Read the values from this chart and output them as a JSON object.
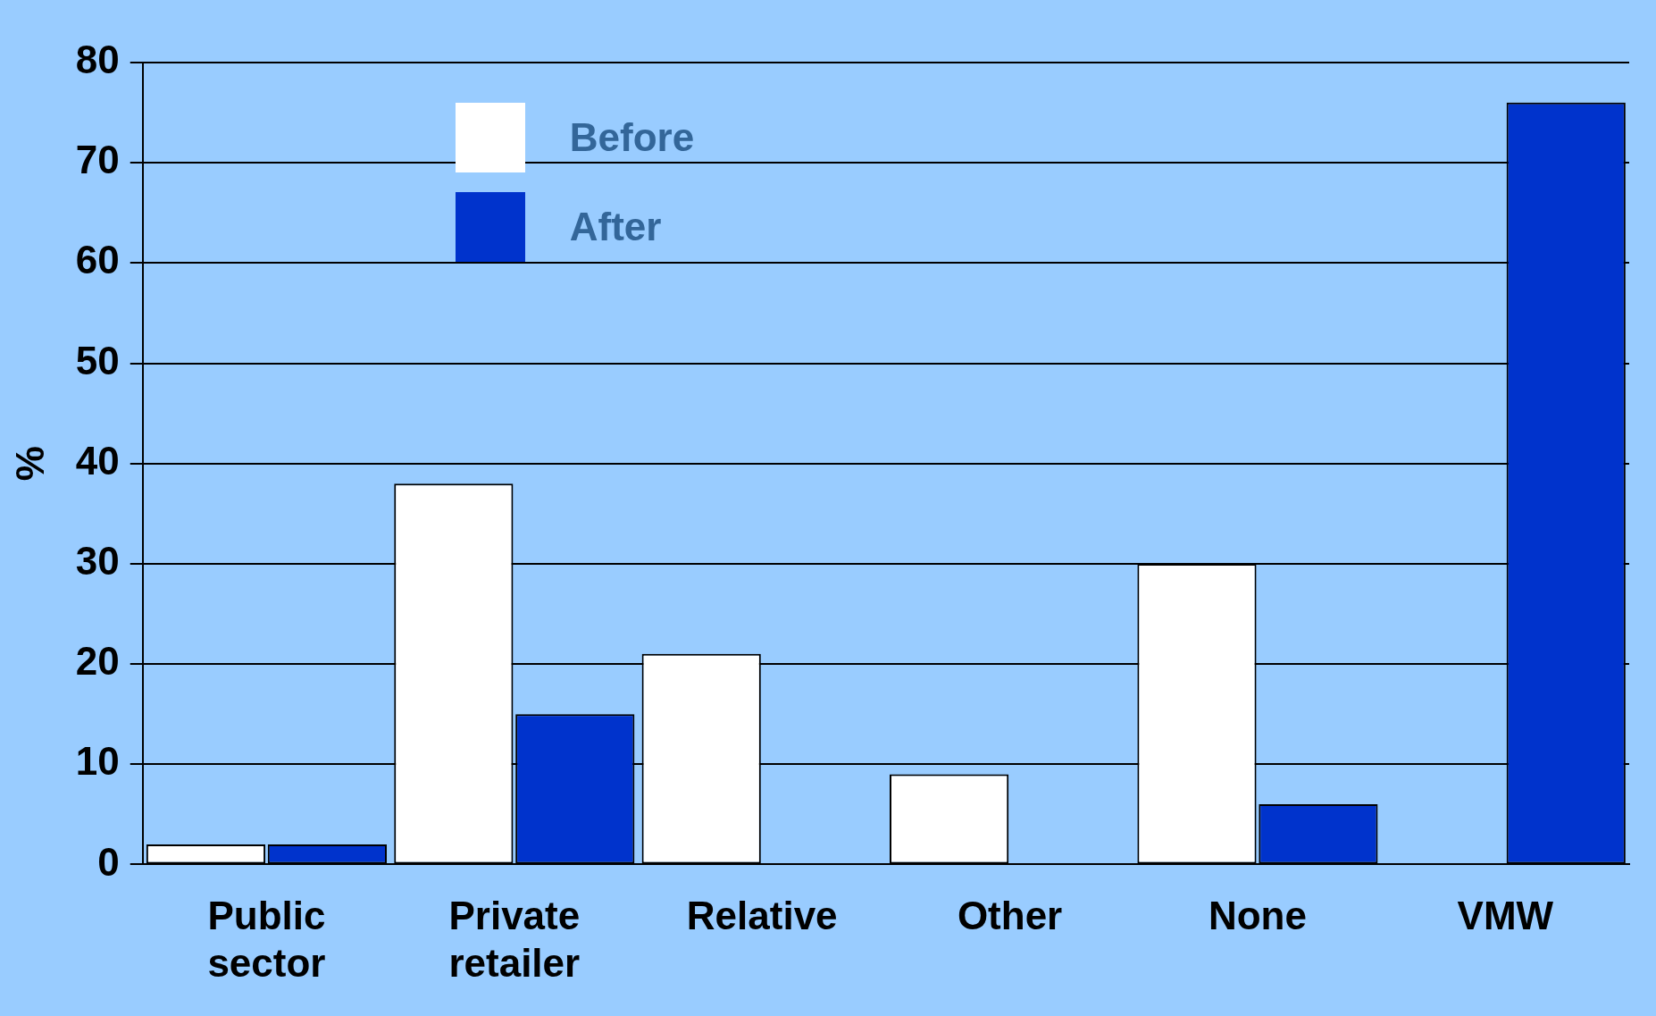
{
  "chart_data": {
    "type": "bar",
    "ylabel": "%",
    "categories": [
      "Public sector",
      "Private retailer",
      "Relative",
      "Other",
      "None",
      "VMW"
    ],
    "series": [
      {
        "name": "Before",
        "color": "#ffffff",
        "values": [
          2,
          38,
          21,
          9,
          30,
          null
        ]
      },
      {
        "name": "After",
        "color": "#0033cc",
        "values": [
          2,
          15,
          null,
          null,
          6,
          76
        ]
      }
    ],
    "ylim": [
      0,
      80
    ],
    "yticks": [
      0,
      10,
      20,
      30,
      40,
      50,
      60,
      70,
      80
    ],
    "grid": "y",
    "legend": "top left"
  }
}
